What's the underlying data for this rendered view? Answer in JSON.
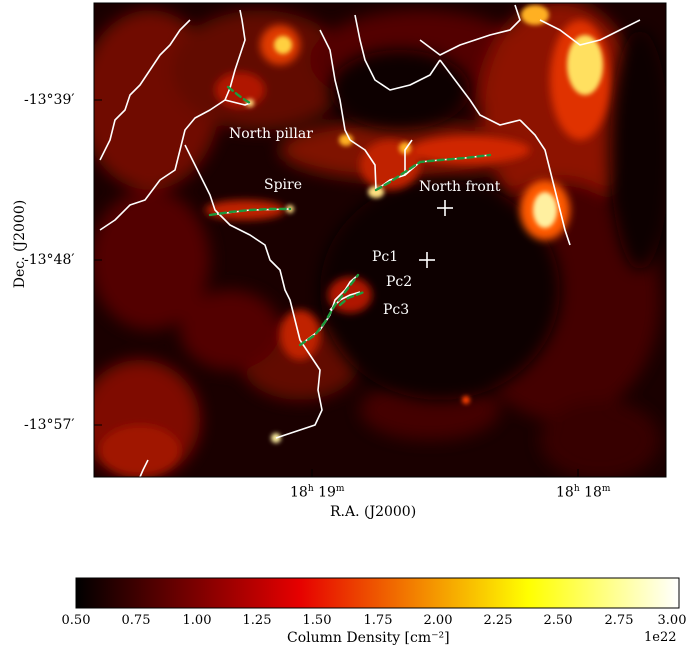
{
  "figure": {
    "xlabel": "R.A. (J2000)",
    "ylabel": "Dec. (J2000)",
    "xticks": [
      {
        "h": "18",
        "m": "19"
      },
      {
        "h": "18",
        "m": "18"
      }
    ],
    "yticks": [
      "-13°39′",
      "-13°48′",
      "-13°57′"
    ],
    "labels": {
      "north_pillar": "North pillar",
      "spire": "Spire",
      "north_front": "North front",
      "pc1": "Pc1",
      "pc2": "Pc2",
      "pc3": "Pc3"
    }
  },
  "colorbar": {
    "title": "Column Density [cm⁻²]",
    "scale_label": "1e22",
    "ticks": [
      "0.50",
      "0.75",
      "1.00",
      "1.25",
      "1.50",
      "1.75",
      "2.00",
      "2.25",
      "2.50",
      "2.75",
      "3.00"
    ],
    "min": 0.5,
    "max": 3.0,
    "colormap": "hot"
  },
  "colors": {
    "filament": "#ffffff",
    "highlight": "#1e9a3c",
    "marker": "#ffffff"
  }
}
